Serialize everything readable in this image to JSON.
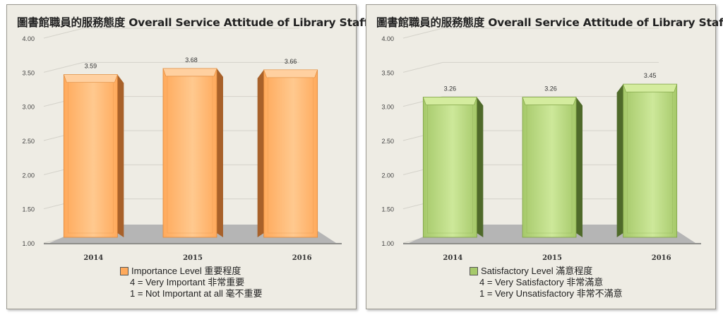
{
  "charts": [
    {
      "title": "圖書館職員的服務態度  Overall Service Attitude of Library Staff",
      "legend": {
        "series_label": "Importance Level 重要程度",
        "scale_high": "4 = Very Important 非常重要",
        "scale_low": "1 = Not  Important at all 毫不重要"
      },
      "colors": {
        "bar_front": "#ffaa5c",
        "bar_light": "#ffc98f",
        "bar_side": "#a8612a",
        "bar_top": "#ffd0a0",
        "border": "#e08a3c"
      },
      "chart_data": {
        "type": "bar",
        "categories": [
          "2014",
          "2015",
          "2016"
        ],
        "series": [
          {
            "name": "Importance Level 重要程度",
            "values": [
              3.59,
              3.68,
              3.66
            ]
          }
        ],
        "data_labels": [
          "3.59",
          "3.68",
          "3.66"
        ],
        "y_ticks": [
          "1.00",
          "1.50",
          "2.00",
          "2.50",
          "3.00",
          "3.50",
          "4.00"
        ],
        "ylim": [
          1,
          4
        ],
        "grid": true,
        "legend_position": "bottom"
      }
    },
    {
      "title": "圖書館職員的服務態度  Overall Service Attitude of Library Staff",
      "legend": {
        "series_label": "Satisfactory Level 滿意程度",
        "scale_high": "4 = Very Satisfactory 非常滿意",
        "scale_low": "1 = Very Unsatisfactory 非常不滿意"
      },
      "colors": {
        "bar_front": "#a6c96a",
        "bar_light": "#cde89a",
        "bar_side": "#4f6a2a",
        "bar_top": "#d4ec9e",
        "border": "#7fa245"
      },
      "chart_data": {
        "type": "bar",
        "categories": [
          "2014",
          "2015",
          "2016"
        ],
        "series": [
          {
            "name": "Satisfactory Level 滿意程度",
            "values": [
              3.26,
              3.26,
              3.45
            ]
          }
        ],
        "data_labels": [
          "3.26",
          "3.26",
          "3.45"
        ],
        "y_ticks": [
          "1.00",
          "1.50",
          "2.00",
          "2.50",
          "3.00",
          "3.50",
          "4.00"
        ],
        "ylim": [
          1,
          4
        ],
        "grid": true,
        "legend_position": "bottom"
      }
    }
  ]
}
